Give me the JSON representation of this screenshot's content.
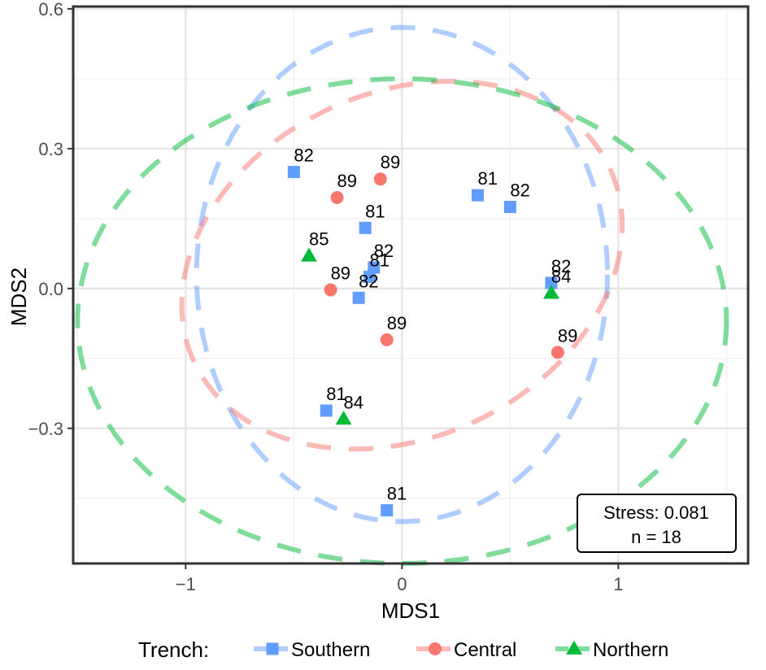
{
  "chart_data": {
    "type": "scatter",
    "xlabel": "MDS1",
    "ylabel": "MDS2",
    "xlim": [
      -1.52,
      1.6
    ],
    "ylim": [
      -0.59,
      0.605
    ],
    "xticks": [
      -1,
      0,
      1
    ],
    "xtick_labels": [
      "−1",
      "0",
      "1"
    ],
    "yticks": [
      -0.3,
      0.0,
      0.3,
      0.6
    ],
    "ytick_labels": [
      "−0.3",
      "0.0",
      "0.3",
      "0.6"
    ],
    "grid": true,
    "legend_position": "bottom",
    "legend_title": "Trench:",
    "annotation": {
      "stress": "Stress: 0.081",
      "n": "n = 18"
    },
    "series": [
      {
        "name": "Southern",
        "color": "#619CFF",
        "marker": "square",
        "points": [
          {
            "x": -0.5,
            "y": 0.25,
            "label": "82"
          },
          {
            "x": -0.17,
            "y": 0.13,
            "label": "81"
          },
          {
            "x": -0.13,
            "y": 0.045,
            "label": "82"
          },
          {
            "x": -0.15,
            "y": 0.025,
            "label": "81"
          },
          {
            "x": -0.2,
            "y": -0.02,
            "label": "82"
          },
          {
            "x": 0.35,
            "y": 0.2,
            "label": "81"
          },
          {
            "x": 0.5,
            "y": 0.175,
            "label": "82"
          },
          {
            "x": 0.69,
            "y": 0.012,
            "label": "82"
          },
          {
            "x": -0.35,
            "y": -0.262,
            "label": "81"
          },
          {
            "x": -0.07,
            "y": -0.476,
            "label": "81"
          }
        ],
        "ellipse": {
          "cx": 0.0,
          "cy": 0.03,
          "rx": 0.95,
          "ry": 0.53
        }
      },
      {
        "name": "Central",
        "color": "#F8766D",
        "marker": "circle",
        "points": [
          {
            "x": -0.1,
            "y": 0.235,
            "label": "89"
          },
          {
            "x": -0.3,
            "y": 0.195,
            "label": "89"
          },
          {
            "x": -0.33,
            "y": -0.003,
            "label": "89"
          },
          {
            "x": -0.07,
            "y": -0.11,
            "label": "89"
          },
          {
            "x": 0.72,
            "y": -0.137,
            "label": "89"
          }
        ],
        "ellipse": {
          "cx": 0.0,
          "cy": 0.05,
          "rx": 1.06,
          "ry": 0.37,
          "angle": -25
        }
      },
      {
        "name": "Northern",
        "color": "#00BA38",
        "marker": "triangle",
        "points": [
          {
            "x": -0.43,
            "y": 0.07,
            "label": "85"
          },
          {
            "x": 0.69,
            "y": -0.01,
            "label": "84"
          },
          {
            "x": -0.27,
            "y": -0.28,
            "label": "84"
          }
        ],
        "ellipse": {
          "cx": 0.0,
          "cy": -0.07,
          "rx": 1.5,
          "ry": 0.52
        }
      }
    ]
  }
}
